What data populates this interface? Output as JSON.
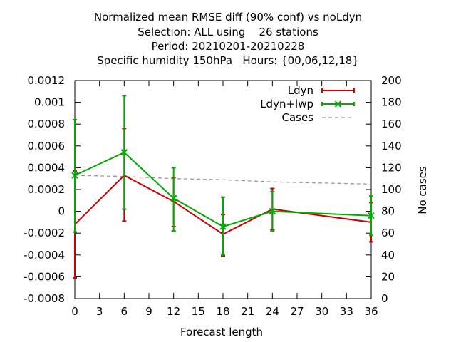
{
  "chart_data": {
    "type": "line",
    "title_lines": [
      "Normalized mean RMSE diff (90% conf) vs noLdyn",
      "Selection: ALL using    26 stations",
      "Period: 20210201-20210228",
      "Specific humidity 150hPa   Hours: {00,06,12,18}"
    ],
    "xlabel": "Forecast length",
    "ylabel_right": "No cases",
    "xlim": [
      0,
      36
    ],
    "ylim": [
      -0.0008,
      0.0012
    ],
    "y2lim": [
      0,
      200
    ],
    "xticks": [
      0,
      3,
      6,
      9,
      12,
      15,
      18,
      21,
      24,
      27,
      30,
      33,
      36
    ],
    "xtick_labels": [
      "0",
      "3",
      "6",
      "9",
      "12",
      "15",
      "18",
      "21",
      "24",
      "27",
      "30",
      "33",
      "36"
    ],
    "yticks": [
      -0.0008,
      -0.0006,
      -0.0004,
      -0.0002,
      0,
      0.0002,
      0.0004,
      0.0006,
      0.0008,
      0.001,
      0.0012
    ],
    "ytick_labels": [
      "-0.0008",
      "-0.0006",
      "-0.0004",
      "-0.0002",
      "0",
      "0.0002",
      "0.0004",
      "0.0006",
      "0.0008",
      "0.001",
      "0.0012"
    ],
    "y2ticks": [
      0,
      20,
      40,
      60,
      80,
      100,
      120,
      140,
      160,
      180,
      200
    ],
    "y2tick_labels": [
      "0",
      "20",
      "40",
      "60",
      "80",
      "100",
      "120",
      "140",
      "160",
      "180",
      "200"
    ],
    "legend_position": "top-right",
    "grid": false,
    "series": [
      {
        "name": "Ldyn",
        "color": "#cc0000",
        "marker": "errorbar",
        "x": [
          0,
          6,
          12,
          18,
          24,
          36
        ],
        "y": [
          -0.00012,
          0.00033,
          9e-05,
          -0.00021,
          2e-05,
          -0.0001
        ],
        "err_low": [
          -0.00061,
          -9e-05,
          -0.00014,
          -0.00041,
          -0.00017,
          -0.00028
        ],
        "err_high": [
          0.00037,
          0.00076,
          0.00031,
          -3e-05,
          0.00021,
          8e-05
        ]
      },
      {
        "name": "Ldyn+lwp",
        "color": "#00aa00",
        "marker": "x-errorbar",
        "x": [
          0,
          6,
          12,
          18,
          24,
          36
        ],
        "y": [
          0.00033,
          0.00054,
          0.00012,
          -0.00014,
          0.0,
          -4e-05
        ],
        "err_low": [
          -0.00019,
          2e-05,
          -0.00018,
          -0.0004,
          -0.00018,
          -0.00022
        ],
        "err_high": [
          0.00084,
          0.00106,
          0.0004,
          0.00013,
          0.00018,
          0.00014
        ]
      },
      {
        "name": "Cases",
        "color": "#999999",
        "style": "dashed",
        "axis": "right",
        "x": [
          0,
          6,
          12,
          18,
          24,
          36
        ],
        "y": [
          113,
          112,
          110,
          109,
          107,
          105
        ]
      }
    ]
  }
}
